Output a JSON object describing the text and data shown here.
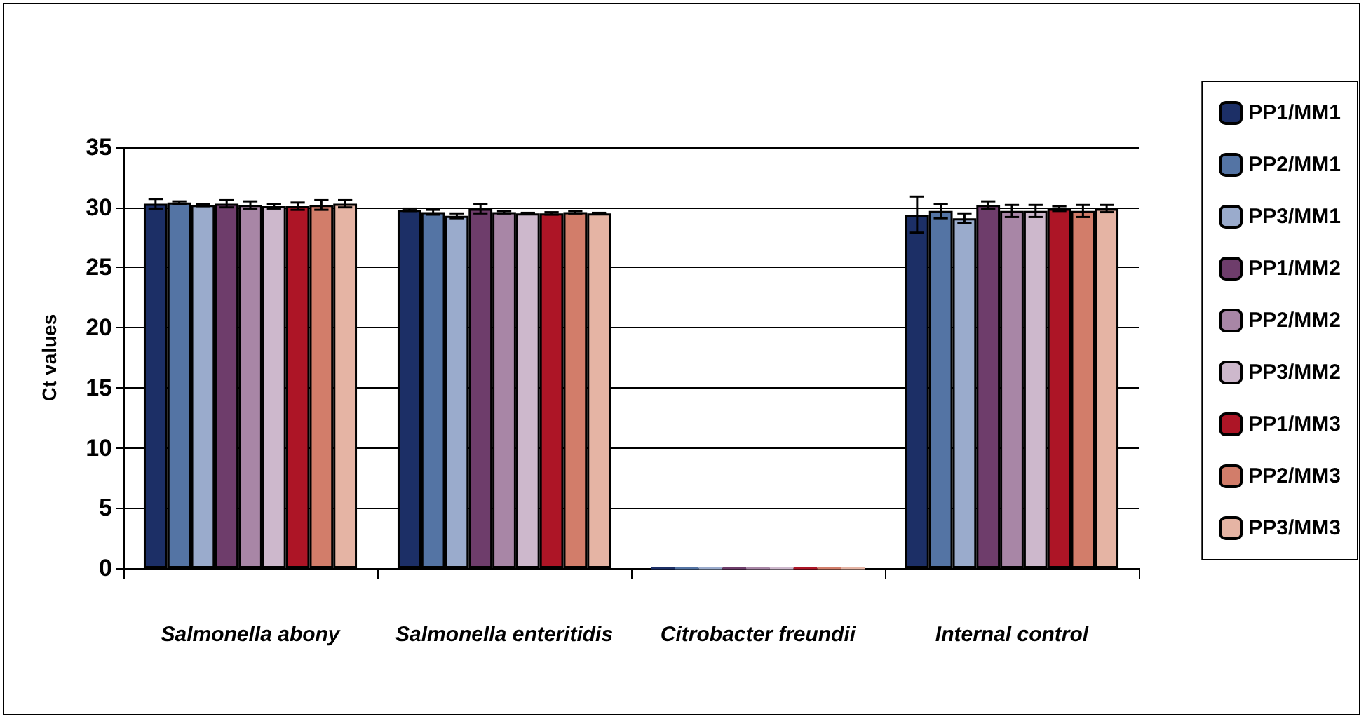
{
  "chart_data": {
    "type": "bar",
    "ylabel": "Ct values",
    "categories": [
      "Salmonella abony",
      "Salmonella enteritidis",
      "Citrobacter freundii",
      "Internal control"
    ],
    "series": [
      {
        "name": "PP1/MM1",
        "color": "#1c2f66",
        "values": [
          30.3,
          29.8,
          0,
          29.4
        ],
        "errors": [
          0.4,
          0.1,
          null,
          1.5
        ]
      },
      {
        "name": "PP2/MM1",
        "color": "#5474a4",
        "values": [
          30.4,
          29.6,
          0,
          29.7
        ],
        "errors": [
          0.1,
          0.2,
          null,
          0.6
        ]
      },
      {
        "name": "PP3/MM1",
        "color": "#9aabcc",
        "values": [
          30.2,
          29.3,
          0,
          29.1
        ],
        "errors": [
          0.1,
          0.2,
          null,
          0.4
        ]
      },
      {
        "name": "PP1/MM2",
        "color": "#6e3d6b",
        "values": [
          30.3,
          29.9,
          0,
          30.2
        ],
        "errors": [
          0.3,
          0.4,
          null,
          0.3
        ]
      },
      {
        "name": "PP2/MM2",
        "color": "#a886a6",
        "values": [
          30.2,
          29.6,
          0,
          29.7
        ],
        "errors": [
          0.3,
          0.1,
          null,
          0.5
        ]
      },
      {
        "name": "PP3/MM2",
        "color": "#cdb8cc",
        "values": [
          30.1,
          29.5,
          0,
          29.7
        ],
        "errors": [
          0.2,
          0.05,
          null,
          0.5
        ]
      },
      {
        "name": "PP1/MM3",
        "color": "#ad1526",
        "values": [
          30.1,
          29.5,
          0,
          29.9
        ],
        "errors": [
          0.3,
          0.1,
          null,
          0.2
        ]
      },
      {
        "name": "PP2/MM3",
        "color": "#d27d6a",
        "values": [
          30.2,
          29.6,
          0,
          29.7
        ],
        "errors": [
          0.4,
          0.1,
          null,
          0.5
        ]
      },
      {
        "name": "PP3/MM3",
        "color": "#e5b4a4",
        "values": [
          30.3,
          29.5,
          0,
          29.9
        ],
        "errors": [
          0.3,
          0.05,
          null,
          0.3
        ]
      }
    ],
    "ylim": [
      0,
      35
    ],
    "yticks": [
      0,
      5,
      10,
      15,
      20,
      25,
      30,
      35
    ],
    "grid": "y",
    "legend": "right"
  }
}
